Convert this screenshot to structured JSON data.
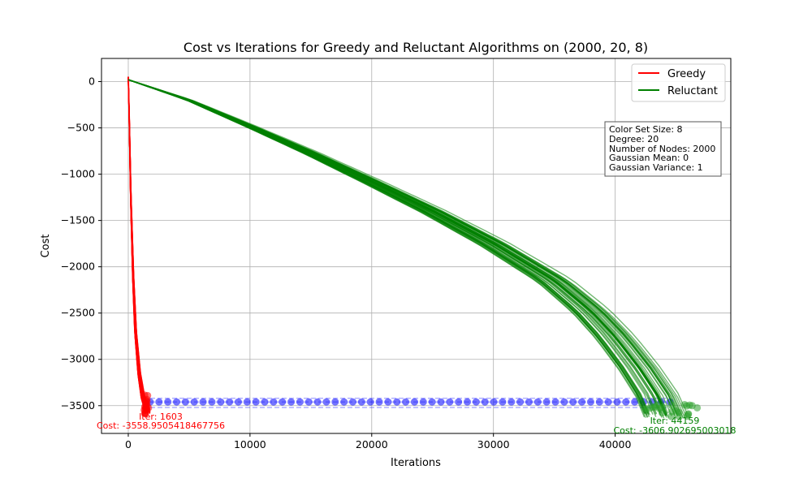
{
  "chart_data": {
    "type": "line",
    "title": "Cost vs Iterations for Greedy and Reluctant Algorithms on (2000, 20, 8)",
    "xlabel": "Iterations",
    "ylabel": "Cost",
    "xlim": [
      -2200,
      49500
    ],
    "ylim": [
      -3800,
      250
    ],
    "xticks": [
      0,
      10000,
      20000,
      30000,
      40000
    ],
    "yticks": [
      0,
      -500,
      -1000,
      -1500,
      -2000,
      -2500,
      -3000,
      -3500
    ],
    "grid": true,
    "legend_position": "top-right",
    "series": [
      {
        "name": "Greedy",
        "color": "#ff0000",
        "points": [
          [
            0,
            50
          ],
          [
            80,
            -400
          ],
          [
            200,
            -1200
          ],
          [
            400,
            -2100
          ],
          [
            600,
            -2700
          ],
          [
            900,
            -3150
          ],
          [
            1200,
            -3400
          ],
          [
            1500,
            -3520
          ],
          [
            1603,
            -3559
          ]
        ]
      },
      {
        "name": "Reluctant",
        "color": "#008000",
        "points": [
          [
            0,
            20
          ],
          [
            5000,
            -200
          ],
          [
            10000,
            -480
          ],
          [
            15000,
            -770
          ],
          [
            20000,
            -1080
          ],
          [
            25000,
            -1400
          ],
          [
            30000,
            -1750
          ],
          [
            35000,
            -2150
          ],
          [
            38000,
            -2480
          ],
          [
            40000,
            -2760
          ],
          [
            42000,
            -3100
          ],
          [
            43500,
            -3400
          ],
          [
            44159,
            -3607
          ]
        ]
      }
    ],
    "greedy_endpoints": {
      "x_range": [
        1300,
        1700
      ],
      "y_range": [
        -3600,
        -3380
      ],
      "color": "#ff0000"
    },
    "reluctant_endpoints": {
      "x_range": [
        42500,
        47000
      ],
      "y_range": [
        -3620,
        -3480
      ],
      "color": "#2ca02c"
    },
    "blue_markers": {
      "x_start": 1800,
      "x_end": 44500,
      "count": 60,
      "y": -3460,
      "band": [
        -3420,
        -3520
      ],
      "color": "#0000ff"
    },
    "annotations": [
      {
        "text": "Iter: 1603",
        "color": "#ff0000"
      },
      {
        "text": "Cost: -3558.9505418467756",
        "color": "#ff0000"
      },
      {
        "text": "Iter: 44159",
        "color": "#008000"
      },
      {
        "text": "Cost: -3606.902695003018",
        "color": "#008000"
      }
    ]
  },
  "info_box": {
    "lines": [
      "Color Set Size: 8",
      "Degree: 20",
      "Number of Nodes: 2000",
      "Gaussian Mean: 0",
      "Gaussian Variance: 1"
    ]
  }
}
